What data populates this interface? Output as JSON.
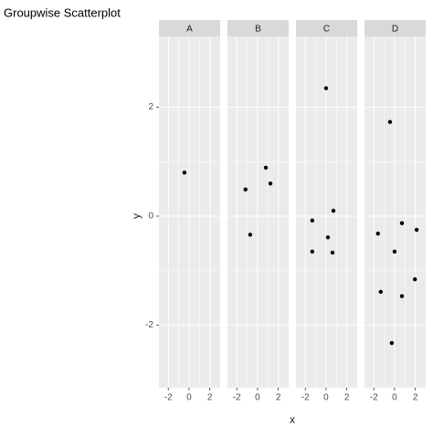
{
  "chart_data": {
    "type": "scatter",
    "title": "Groupwise Scatterplot",
    "xlabel": "x",
    "ylabel": "y",
    "panels": [
      {
        "name": "A",
        "x": [
          -0.44
        ],
        "y": [
          0.8
        ]
      },
      {
        "name": "B",
        "x": [
          0.8,
          1.24,
          -1.16,
          -0.71
        ],
        "y": [
          0.89,
          0.6,
          0.49,
          -0.34
        ]
      },
      {
        "name": "C",
        "x": [
          0,
          0.71,
          -1.33,
          0.18,
          -1.33,
          0.62
        ],
        "y": [
          2.35,
          0.1,
          -0.08,
          -0.39,
          -0.65,
          -0.67
        ]
      },
      {
        "name": "D",
        "x": [
          -0.44,
          0.71,
          2.13,
          -1.6,
          0,
          1.96,
          -1.33,
          0.71,
          -0.27
        ],
        "y": [
          1.73,
          -0.13,
          -0.25,
          -0.32,
          -0.65,
          -1.16,
          -1.39,
          -1.47,
          -2.33
        ]
      }
    ],
    "color": "#000000",
    "xlim": [
      -2.9,
      3.0
    ],
    "xticks": [
      -2,
      0,
      2
    ],
    "ylim": [
      -3.15,
      3.3
    ],
    "yticks": [
      -2,
      0,
      2
    ],
    "grid": true
  }
}
